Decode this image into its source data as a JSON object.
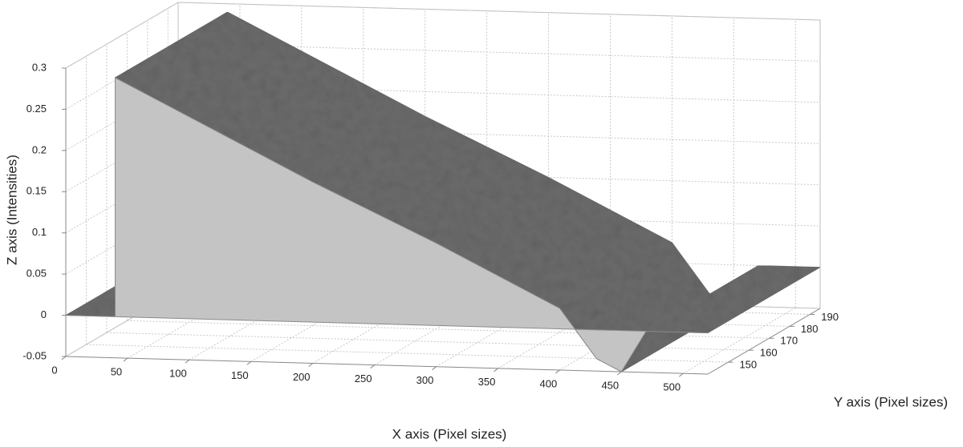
{
  "chart_data": {
    "type": "surface",
    "xlabel": "X axis (Pixel sizes)",
    "ylabel": "Y axis (Pixel sizes)",
    "zlabel": "Z axis (Intensities)",
    "xlim": [
      0,
      520
    ],
    "xticks": [
      0,
      50,
      100,
      150,
      200,
      250,
      300,
      350,
      400,
      450,
      500
    ],
    "ylim": [
      140,
      195
    ],
    "yticks": [
      150,
      160,
      170,
      180,
      190
    ],
    "zlim": [
      -0.05,
      0.3
    ],
    "zticks": [
      -0.05,
      0,
      0.05,
      0.1,
      0.15,
      0.2,
      0.25,
      0.3
    ],
    "grid": true,
    "x": [
      0,
      40,
      40,
      100,
      200,
      300,
      400,
      430,
      450,
      470,
      520
    ],
    "values": [
      0,
      0,
      0.29,
      0.245,
      0.17,
      0.1,
      0.025,
      -0.035,
      -0.05,
      0,
      0
    ],
    "top_color": "#6b6b6b",
    "side_color": "#c4c4c4"
  }
}
